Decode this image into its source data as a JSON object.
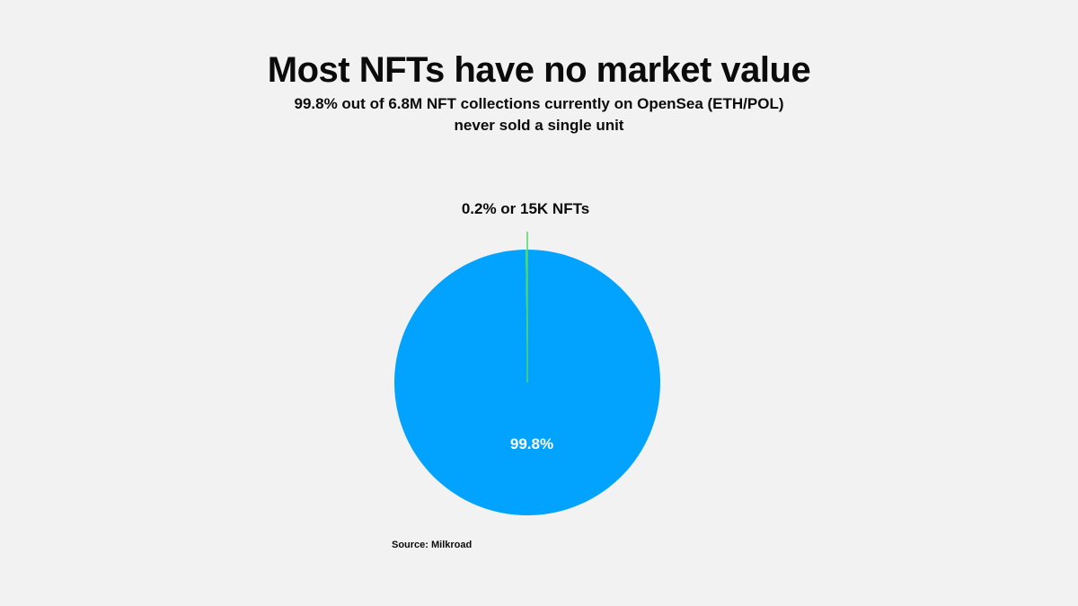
{
  "header": {
    "title": "Most NFTs have no market value",
    "subtitle_line1": "99.8% out of 6.8M NFT collections currently on OpenSea (ETH/POL)",
    "subtitle_line2": "never sold a single unit"
  },
  "chart_data": {
    "type": "pie",
    "title": "Most NFTs have no market value",
    "subtitle": "99.8% out of 6.8M NFT collections currently on OpenSea (ETH/POL) never sold a single unit",
    "slices": [
      {
        "label": "99.8%",
        "value": 99.8,
        "color": "#02a3fe"
      },
      {
        "label": "0.2% or 15K NFTs",
        "value": 0.2,
        "color": "#4cd964"
      }
    ],
    "start_angle_deg": 0,
    "direction": "clockwise"
  },
  "footer": {
    "source": "Source: Milkroad"
  }
}
